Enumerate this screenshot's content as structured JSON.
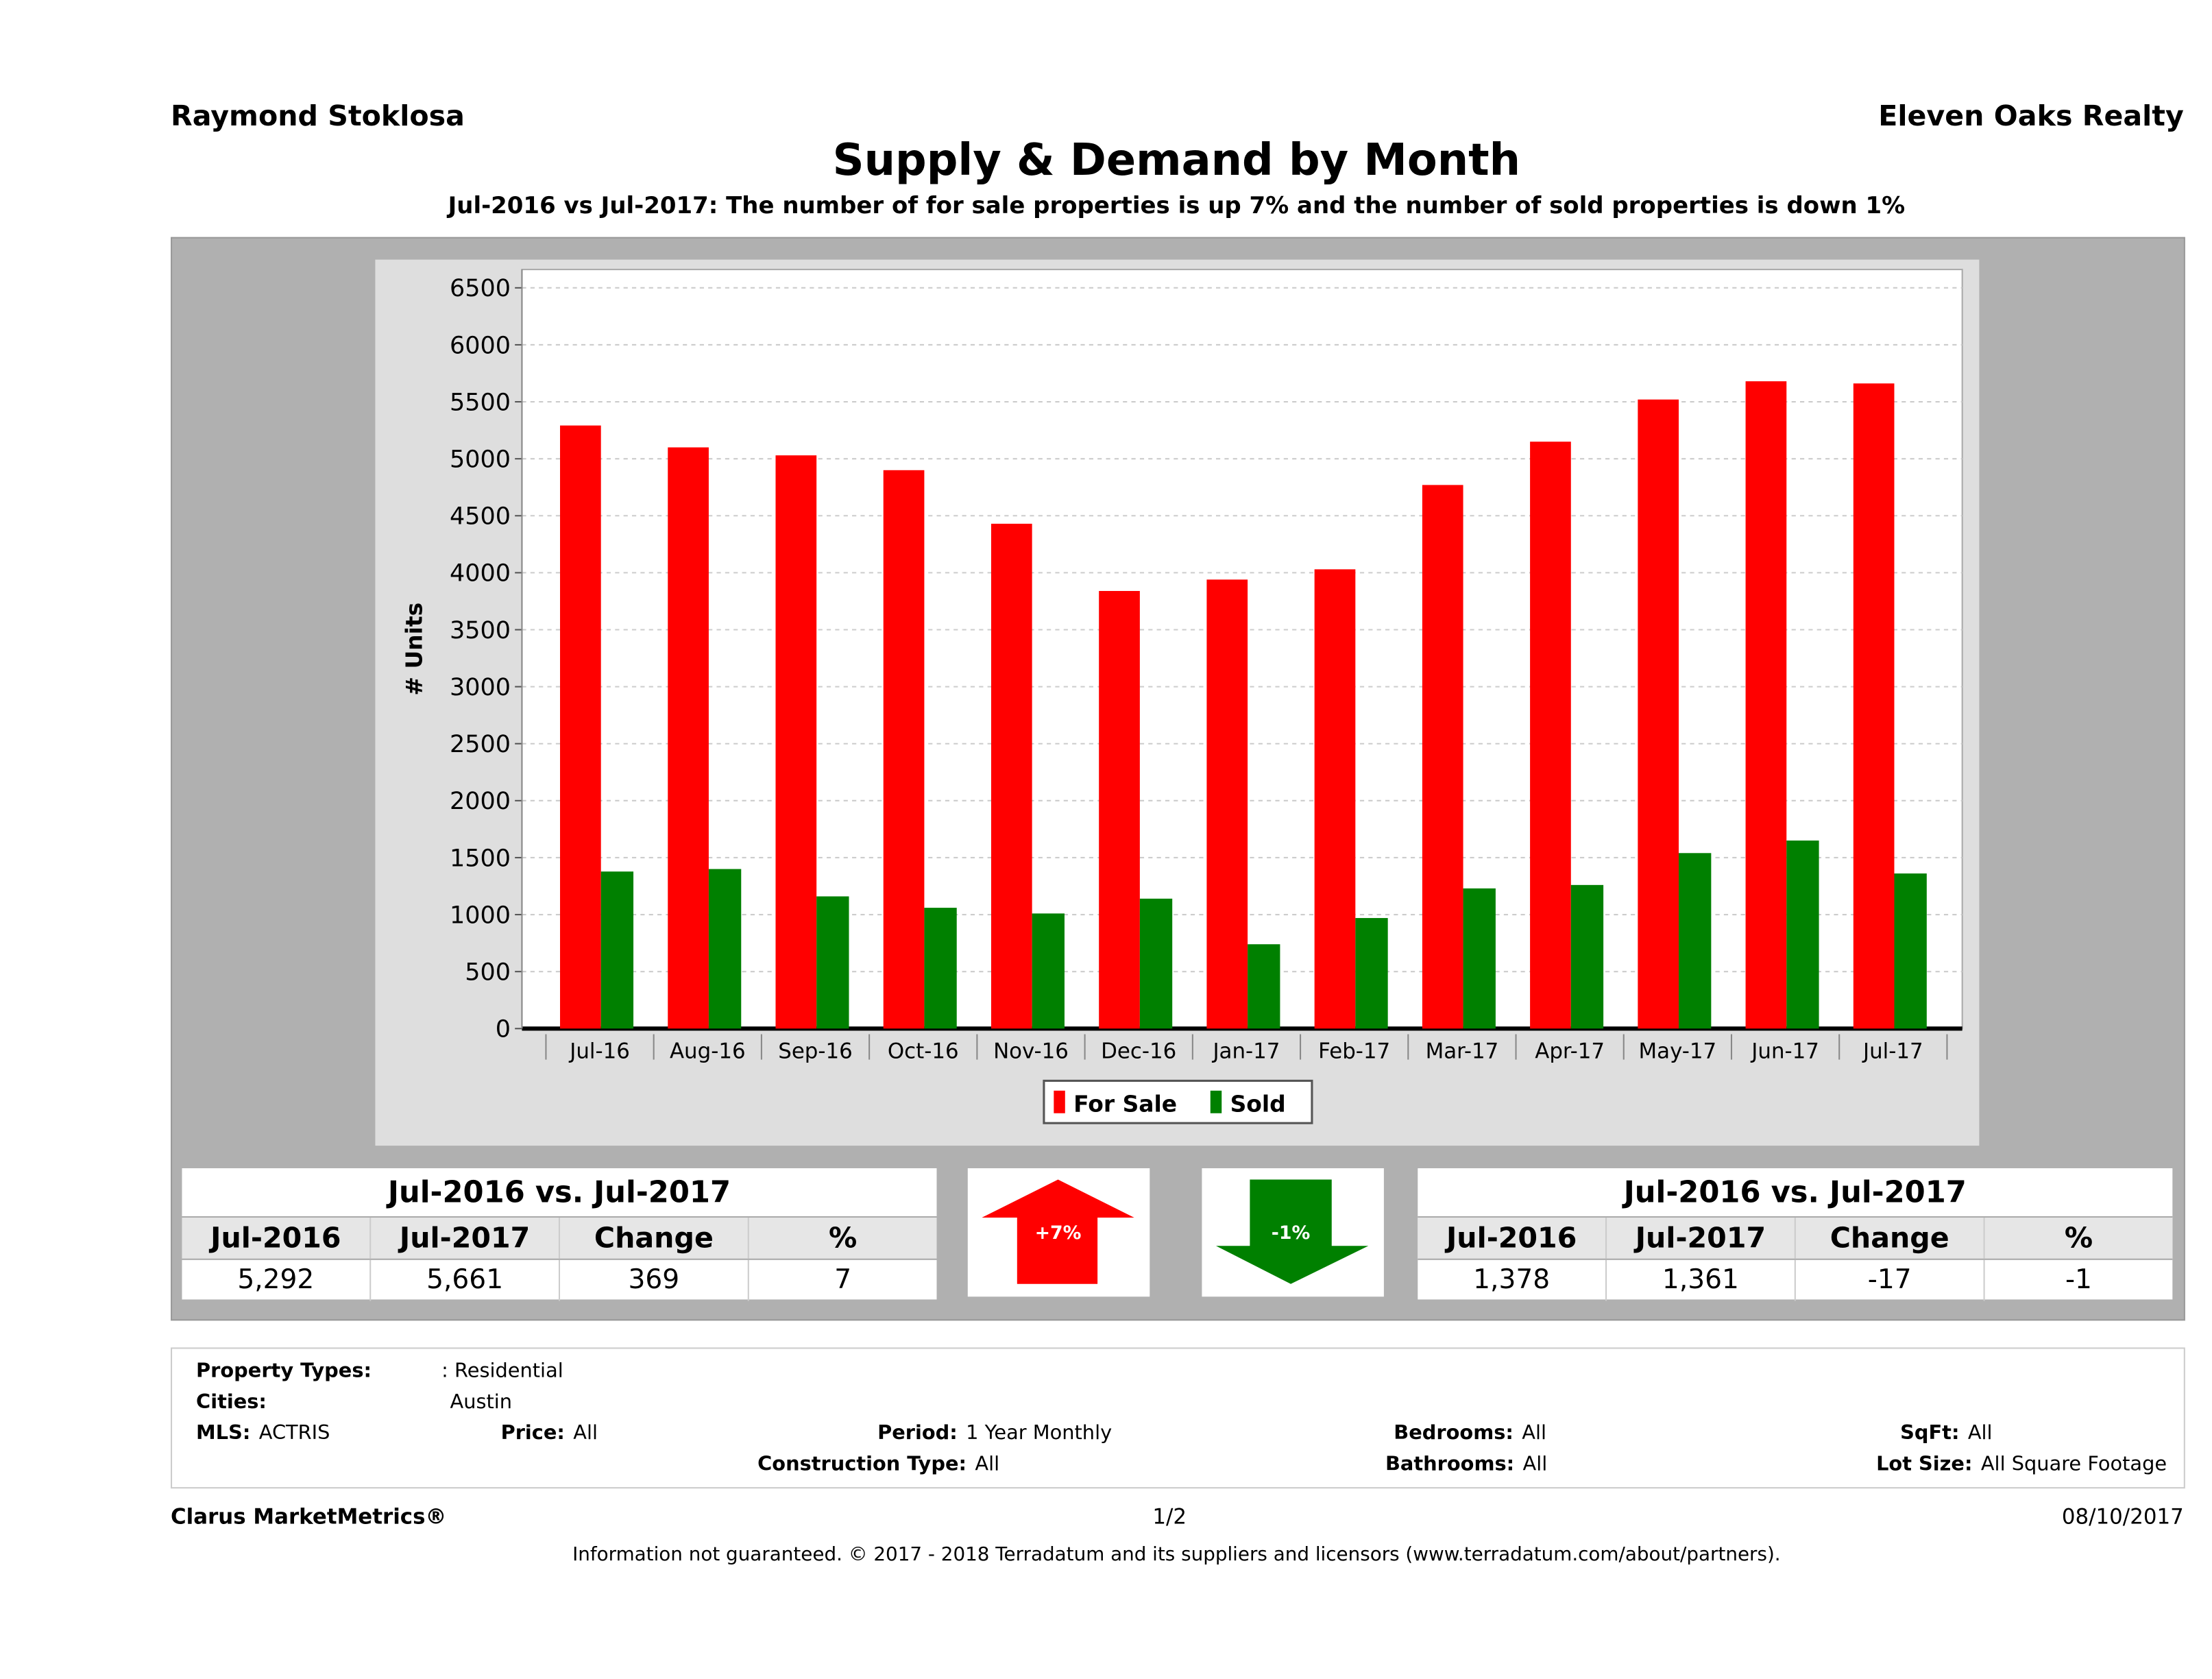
{
  "header": {
    "agent": "Raymond Stoklosa",
    "office": "Eleven Oaks Realty",
    "title": "Supply & Demand by Month",
    "subtitle": "Jul-2016 vs Jul-2017: The number of for sale properties is up 7% and the number of sold properties is down 1%"
  },
  "chart_data": {
    "type": "bar",
    "ylabel": "# Units",
    "ylim": [
      0,
      6500
    ],
    "yticks": [
      "0",
      "500",
      "1000",
      "1500",
      "2000",
      "2500",
      "3000",
      "3500",
      "4000",
      "4500",
      "5000",
      "5500",
      "6000",
      "6500"
    ],
    "grid": true,
    "legend_position": "bottom",
    "categories": [
      "Jul-16",
      "Aug-16",
      "Sep-16",
      "Oct-16",
      "Nov-16",
      "Dec-16",
      "Jan-17",
      "Feb-17",
      "Mar-17",
      "Apr-17",
      "May-17",
      "Jun-17",
      "Jul-17"
    ],
    "series": [
      {
        "name": "For Sale",
        "color": "#ff0000",
        "values": [
          5292,
          5100,
          5030,
          4900,
          4430,
          3840,
          3940,
          4030,
          4770,
          5150,
          5520,
          5680,
          5661
        ]
      },
      {
        "name": "Sold",
        "color": "#008000",
        "values": [
          1378,
          1400,
          1160,
          1060,
          1010,
          1140,
          740,
          970,
          1230,
          1260,
          1540,
          1650,
          1361
        ]
      }
    ]
  },
  "for_sale_table": {
    "title": "Jul-2016 vs. Jul-2017",
    "headers": [
      "Jul-2016",
      "Jul-2017",
      "Change",
      "%"
    ],
    "values": [
      "5,292",
      "5,661",
      "369",
      "7"
    ]
  },
  "sold_table": {
    "title": "Jul-2016 vs. Jul-2017",
    "headers": [
      "Jul-2016",
      "Jul-2017",
      "Change",
      "%"
    ],
    "values": [
      "1,378",
      "1,361",
      "-17",
      "-1"
    ]
  },
  "arrows": {
    "up_label": "+7%",
    "up_color": "#ff0000",
    "down_label": "-1%",
    "down_color": "#008000"
  },
  "info": {
    "property_types_label": "Property Types:",
    "property_types": ": Residential",
    "cities_label": "Cities:",
    "cities": "Austin",
    "mls_label": "MLS:",
    "mls": "ACTRIS",
    "price_label": "Price:",
    "price": "All",
    "period_label": "Period:",
    "period": "1 Year Monthly",
    "construction_label": "Construction Type:",
    "construction": "All",
    "bedrooms_label": "Bedrooms:",
    "bedrooms": "All",
    "bathrooms_label": "Bathrooms:",
    "bathrooms": "All",
    "sqft_label": "SqFt:",
    "sqft": "All",
    "lot_label": "Lot Size:",
    "lot": "All Square Footage"
  },
  "footer": {
    "brand": "Clarus MarketMetrics®",
    "page": "1/2",
    "date": "08/10/2017",
    "disclaimer": "Information not guaranteed. © 2017 - 2018 Terradatum and its suppliers and licensors (www.terradatum.com/about/partners)."
  }
}
